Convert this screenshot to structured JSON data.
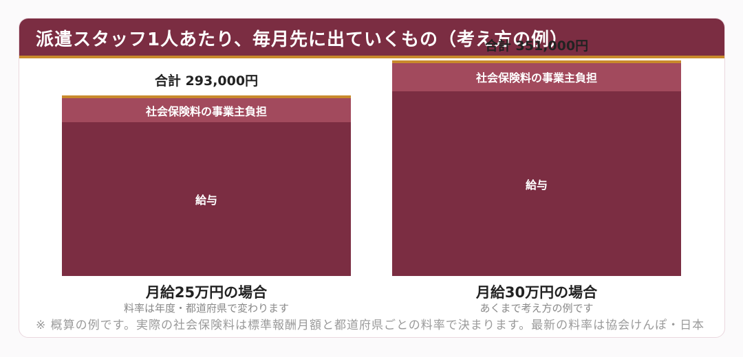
{
  "header": {
    "title": "派遣スタッフ1人あたり、毎月先に出ていくもの（考え方の例）"
  },
  "colors": {
    "salary": "#7b2d42",
    "employer_insurance": "#a24a5d",
    "accent": "#c98a2c"
  },
  "chart_data": {
    "type": "bar",
    "stacked": true,
    "categories": [
      "月給25万円の場合",
      "月給30万円の場合"
    ],
    "subtitles": [
      "料率は年度・都道府県で変わります",
      "あくまで考え方の例です"
    ],
    "totals": [
      "合計 293,000円",
      "合計 351,000円"
    ],
    "total_values": [
      293000,
      351000
    ],
    "series": [
      {
        "name": "給与",
        "values": [
          250000,
          300000
        ]
      },
      {
        "name": "社会保険料の事業主負担",
        "values": [
          43000,
          51000
        ]
      }
    ]
  },
  "footnote": "※ 概算の例です。実際の社会保険料は標準報酬月額と都道府県ごとの料率で決まります。最新の料率は協会けんぽ・日本"
}
